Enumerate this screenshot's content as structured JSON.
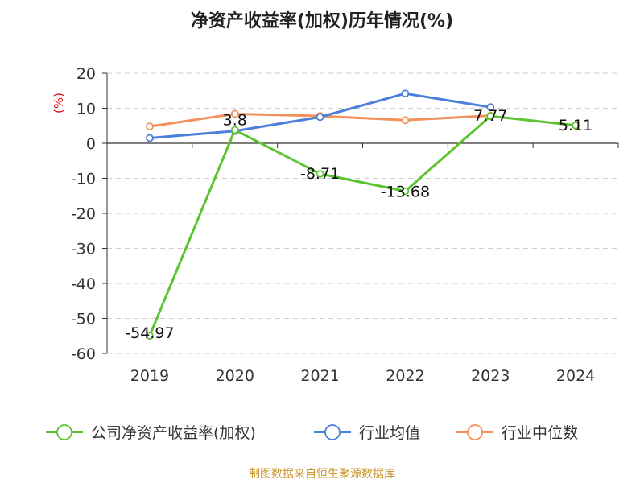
{
  "chart_data": {
    "type": "line",
    "title": "净资产收益率(加权)历年情况(%)",
    "ylabel": "(%)",
    "xlabel": "",
    "categories": [
      "2019",
      "2020",
      "2021",
      "2022",
      "2023",
      "2024"
    ],
    "ylim": [
      -60,
      20
    ],
    "yticks": [
      20,
      10,
      0,
      -10,
      -20,
      -30,
      -40,
      -50,
      -60
    ],
    "ytick_labels": [
      "20",
      "10",
      "0",
      "-10",
      "-20",
      "-30",
      "-40",
      "-50",
      "-60"
    ],
    "grid": "horizontal dashed",
    "legend_position": "bottom",
    "series": [
      {
        "name": "公司净资产收益率(加权)",
        "color": "#5cc430",
        "values": [
          -54.97,
          3.8,
          -8.71,
          -13.68,
          7.77,
          5.11
        ],
        "labels": [
          "-54.97",
          "3.8",
          "-8.71",
          "-13.68",
          "7.77",
          "5.11"
        ],
        "show_labels": true
      },
      {
        "name": "行业均值",
        "color": "#4a7fdc",
        "values": [
          1.5,
          3.5,
          7.5,
          14.2,
          10.3,
          null
        ],
        "show_labels": false
      },
      {
        "name": "行业中位数",
        "color": "#f5905a",
        "values": [
          4.8,
          8.4,
          7.8,
          6.6,
          7.9,
          null
        ],
        "show_labels": false
      }
    ],
    "source": "制图数据来自恒生聚源数据库"
  }
}
